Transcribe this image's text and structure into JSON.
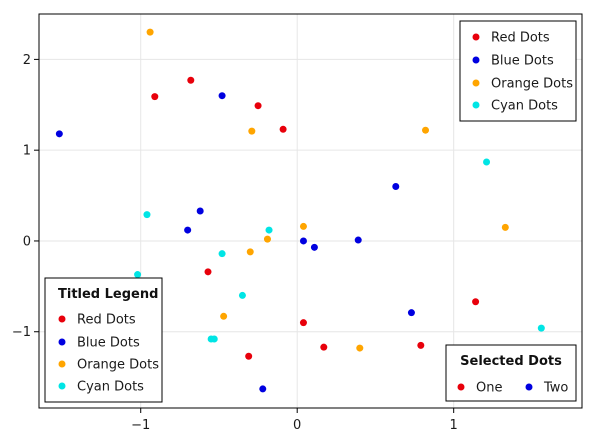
{
  "chart_data": {
    "type": "scatter",
    "xlim": [
      -1.65,
      1.82
    ],
    "ylim": [
      -1.84,
      2.5
    ],
    "xticks": [
      -1,
      0,
      1
    ],
    "yticks": [
      -1,
      0,
      1,
      2
    ],
    "xtick_labels": [
      "−1",
      "0",
      "1"
    ],
    "ytick_labels": [
      "−1",
      "0",
      "1",
      "2"
    ],
    "grid": true,
    "series": [
      {
        "name": "Red Dots",
        "color": "#e8000b",
        "points": [
          [
            -0.68,
            1.77
          ],
          [
            -0.91,
            1.59
          ],
          [
            -0.25,
            1.49
          ],
          [
            -0.09,
            1.23
          ],
          [
            -0.57,
            -0.34
          ],
          [
            0.04,
            -0.9
          ],
          [
            -0.31,
            -1.27
          ],
          [
            0.17,
            -1.17
          ],
          [
            0.79,
            -1.15
          ],
          [
            1.14,
            -0.67
          ]
        ]
      },
      {
        "name": "Blue Dots",
        "color": "#0000e0",
        "points": [
          [
            -1.52,
            1.18
          ],
          [
            -0.48,
            1.6
          ],
          [
            0.63,
            0.6
          ],
          [
            -0.62,
            0.33
          ],
          [
            -0.7,
            0.12
          ],
          [
            0.04,
            0.0
          ],
          [
            0.11,
            -0.07
          ],
          [
            0.39,
            0.01
          ],
          [
            0.73,
            -0.79
          ],
          [
            -0.22,
            -1.63
          ]
        ]
      },
      {
        "name": "Orange Dots",
        "color": "#ffa500",
        "points": [
          [
            -0.94,
            2.3
          ],
          [
            -0.29,
            1.21
          ],
          [
            0.82,
            1.22
          ],
          [
            0.04,
            0.16
          ],
          [
            -0.19,
            0.02
          ],
          [
            -0.3,
            -0.12
          ],
          [
            1.33,
            0.15
          ],
          [
            -0.47,
            -0.83
          ],
          [
            0.4,
            -1.18
          ]
        ]
      },
      {
        "name": "Cyan Dots",
        "color": "#00e5e5",
        "points": [
          [
            -0.96,
            0.29
          ],
          [
            1.21,
            0.87
          ],
          [
            -0.18,
            0.12
          ],
          [
            -0.48,
            -0.14
          ],
          [
            -1.02,
            -0.37
          ],
          [
            -0.35,
            -0.6
          ],
          [
            -0.55,
            -1.08
          ],
          [
            -0.53,
            -1.08
          ],
          [
            1.56,
            -0.96
          ]
        ]
      }
    ],
    "legends": {
      "top_right": {
        "entries": [
          {
            "label": "Red Dots",
            "color": "#e8000b"
          },
          {
            "label": "Blue Dots",
            "color": "#0000e0"
          },
          {
            "label": "Orange Dots",
            "color": "#ffa500"
          },
          {
            "label": "Cyan Dots",
            "color": "#00e5e5"
          }
        ]
      },
      "bottom_left": {
        "title": "Titled Legend",
        "entries": [
          {
            "label": "Red Dots",
            "color": "#e8000b"
          },
          {
            "label": "Blue Dots",
            "color": "#0000e0"
          },
          {
            "label": "Orange Dots",
            "color": "#ffa500"
          },
          {
            "label": "Cyan Dots",
            "color": "#00e5e5"
          }
        ]
      },
      "bottom_right": {
        "title": "Selected Dots",
        "entries": [
          {
            "label": "One",
            "color": "#e8000b"
          },
          {
            "label": "Two",
            "color": "#0000e0"
          }
        ]
      }
    }
  }
}
